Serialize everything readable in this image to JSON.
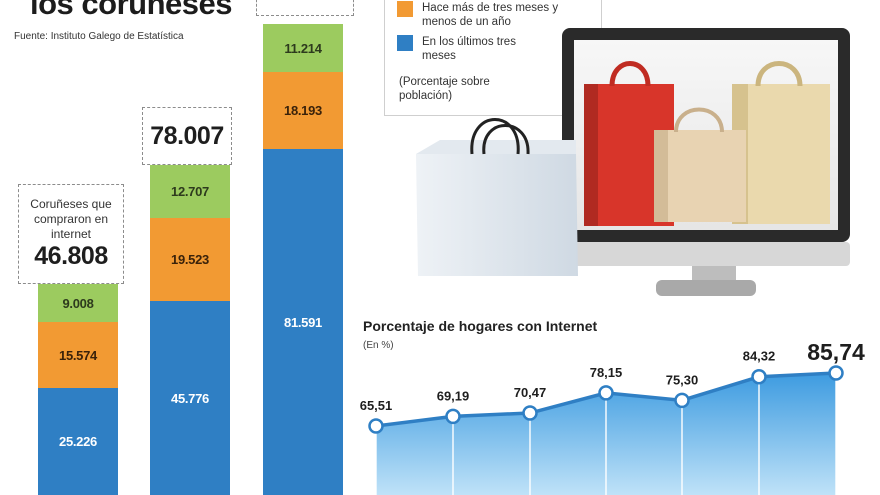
{
  "header": {
    "title": "los coruñeses",
    "source": "Fuente: Instituto Galego de Estatística"
  },
  "legend": {
    "items": [
      {
        "label": "Hace más de tres meses y menos de un año",
        "color": "#f29a33"
      },
      {
        "label": "En los últimos tres meses",
        "color": "#2f7fc4"
      }
    ],
    "note": "(Porcentaje sobre población)"
  },
  "boxes": [
    {
      "label": "Coruñeses que compraron en internet",
      "total": "46.808"
    },
    {
      "label": "",
      "total": "78.007"
    }
  ],
  "chart_data": [
    {
      "type": "bar",
      "stacked": true,
      "series": [
        {
          "color": "#2f7fc4",
          "values": [
            25226,
            45776,
            81591
          ],
          "labels": [
            "25.226",
            "45.776",
            "81.591"
          ]
        },
        {
          "color": "#f29a33",
          "values": [
            15574,
            19523,
            18193
          ],
          "labels": [
            "15.574",
            "19.523",
            "18.193"
          ]
        },
        {
          "color": "#9ccb5f",
          "values": [
            9008,
            12707,
            11214
          ],
          "labels": [
            "9.008",
            "12.707",
            "11.214"
          ]
        }
      ]
    },
    {
      "type": "area",
      "title": "Porcentaje de hogares con Internet",
      "unit": "(En %)",
      "values": [
        65.51,
        69.19,
        70.47,
        78.15,
        75.3,
        84.32,
        85.74
      ],
      "labels": [
        "65,51",
        "69,19",
        "70,47",
        "78,15",
        "75,30",
        "84,32",
        "85,74"
      ],
      "color": "#2f7fc4"
    }
  ]
}
